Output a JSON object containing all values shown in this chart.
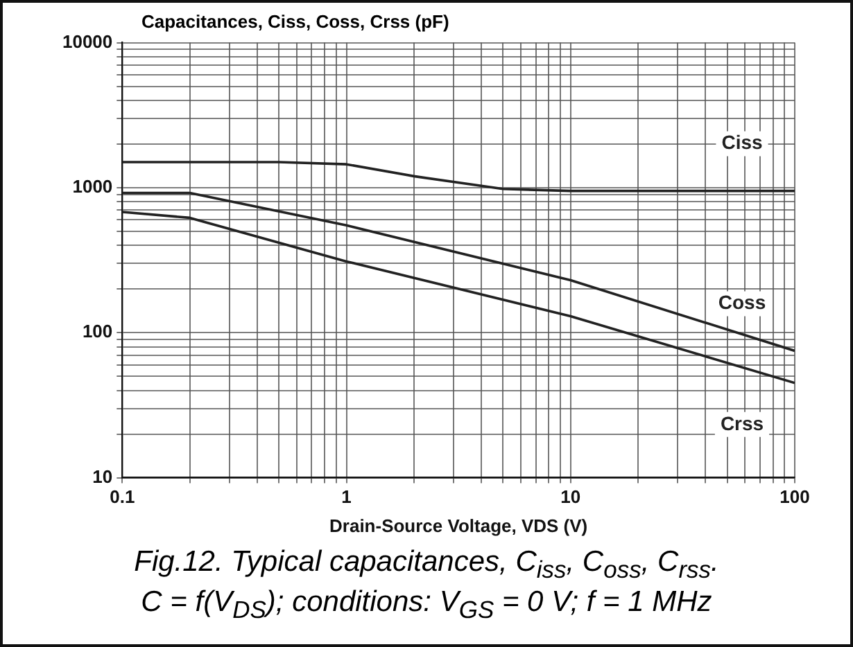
{
  "chart_data": {
    "type": "line",
    "ylabel": "Capacitances, Ciss, Coss, Crss (pF)",
    "xlabel": "Drain-Source Voltage, VDS (V)",
    "annotations": [
      "Fig.12.   Typical capacitances, C$_{iss}$, C$_{oss}$, C$_{rss}$.",
      "C = f(V$_{DS}$); conditions: V$_{GS}$ = 0 V; f = 1 MHz"
    ],
    "log": "xy",
    "grid": true,
    "legend": false,
    "marker": "none",
    "line_style": "solid",
    "xlim": [
      0.1,
      100
    ],
    "ylim": [
      10,
      10000
    ],
    "xticks": [
      0.1,
      {
        "value": 0.2,
        "label": null
      },
      {
        "value": 0.3,
        "label": null
      },
      {
        "value": 0.4,
        "label": null
      },
      {
        "value": 0.5,
        "label": null
      },
      {
        "value": 0.6,
        "label": null
      },
      {
        "value": 0.7,
        "label": null
      },
      {
        "value": 0.8,
        "label": null
      },
      {
        "value": 0.9,
        "label": null
      },
      1,
      {
        "value": 2,
        "label": null
      },
      {
        "value": 3,
        "label": null
      },
      {
        "value": 4,
        "label": null
      },
      {
        "value": 5,
        "label": null
      },
      {
        "value": 6,
        "label": null
      },
      {
        "value": 7,
        "label": null
      },
      {
        "value": 8,
        "label": null
      },
      {
        "value": 9,
        "label": null
      },
      10,
      {
        "value": 20,
        "label": null
      },
      {
        "value": 30,
        "label": null
      },
      {
        "value": 40,
        "label": null
      },
      {
        "value": 50,
        "label": null
      },
      {
        "value": 60,
        "label": null
      },
      {
        "value": 70,
        "label": null
      },
      {
        "value": 80,
        "label": null
      },
      {
        "value": 90,
        "label": null
      },
      100
    ],
    "yticks": [
      10,
      {
        "value": 20,
        "label": null
      },
      {
        "value": 30,
        "label": null
      },
      {
        "value": 40,
        "label": null
      },
      {
        "value": 50,
        "label": null
      },
      {
        "value": 60,
        "label": null
      },
      {
        "value": 70,
        "label": null
      },
      {
        "value": 80,
        "label": null
      },
      {
        "value": 90,
        "label": null
      },
      100,
      {
        "value": 200,
        "label": null
      },
      {
        "value": 300,
        "label": null
      },
      {
        "value": 400,
        "label": null
      },
      {
        "value": 500,
        "label": null
      },
      {
        "value": 600,
        "label": null
      },
      {
        "value": 700,
        "label": null
      },
      {
        "value": 800,
        "label": null
      },
      {
        "value": 900,
        "label": null
      },
      1000,
      {
        "value": 2000,
        "label": null
      },
      {
        "value": 3000,
        "label": null
      },
      {
        "value": 4000,
        "label": null
      },
      {
        "value": 5000,
        "label": null
      },
      {
        "value": 6000,
        "label": null
      },
      {
        "value": 7000,
        "label": null
      },
      {
        "value": 8000,
        "label": null
      },
      {
        "value": 9000,
        "label": null
      },
      10000
    ],
    "series": [
      {
        "name": "Ciss",
        "color": "#222222",
        "x": [
          0.1,
          0.5,
          1,
          2,
          5,
          10,
          100
        ],
        "values": [
          1500,
          1500,
          1450,
          1200,
          980,
          950,
          950
        ]
      },
      {
        "name": "Coss",
        "color": "#222222",
        "x": [
          0.1,
          0.2,
          1,
          10,
          100
        ],
        "values": [
          920,
          920,
          550,
          230,
          75
        ]
      },
      {
        "name": "Crss",
        "color": "#222222",
        "x": [
          0.1,
          0.2,
          1,
          10,
          100
        ],
        "values": [
          680,
          620,
          310,
          130,
          45
        ]
      }
    ]
  }
}
